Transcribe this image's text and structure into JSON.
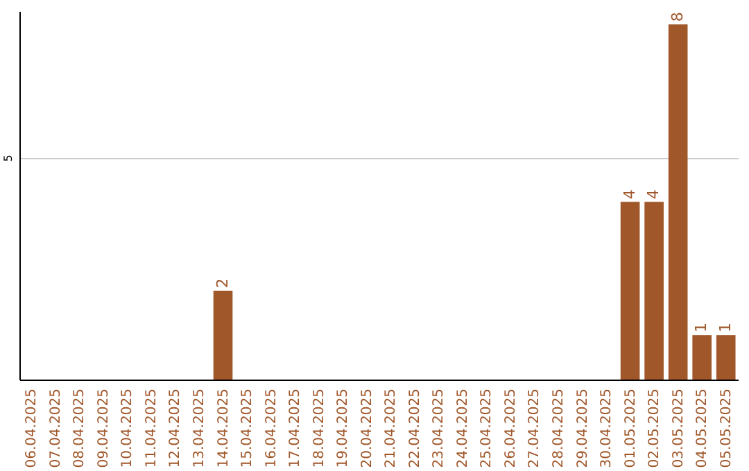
{
  "chart_data": {
    "type": "bar",
    "categories": [
      "06.04.2025",
      "07.04.2025",
      "08.04.2025",
      "09.04.2025",
      "10.04.2025",
      "11.04.2025",
      "12.04.2025",
      "13.04.2025",
      "14.04.2025",
      "15.04.2025",
      "16.04.2025",
      "17.04.2025",
      "18.04.2025",
      "19.04.2025",
      "20.04.2025",
      "21.04.2025",
      "22.04.2025",
      "23.04.2025",
      "24.04.2025",
      "25.04.2025",
      "26.04.2025",
      "27.04.2025",
      "28.04.2025",
      "29.04.2025",
      "30.04.2025",
      "01.05.2025",
      "02.05.2025",
      "03.05.2025",
      "04.05.2025",
      "05.05.2025"
    ],
    "values": [
      0,
      0,
      0,
      0,
      0,
      0,
      0,
      0,
      2,
      0,
      0,
      0,
      0,
      0,
      0,
      0,
      0,
      0,
      0,
      0,
      0,
      0,
      0,
      0,
      0,
      4,
      4,
      8,
      1,
      1
    ],
    "value_labels": [
      null,
      null,
      null,
      null,
      null,
      null,
      null,
      null,
      "2",
      null,
      null,
      null,
      null,
      null,
      null,
      null,
      null,
      null,
      null,
      null,
      null,
      null,
      null,
      null,
      null,
      "4",
      "4",
      "8",
      "1",
      "1"
    ],
    "color": "#a0572a",
    "ylim": [
      0,
      8.3
    ],
    "yticks": [
      5
    ],
    "grid": "y"
  }
}
